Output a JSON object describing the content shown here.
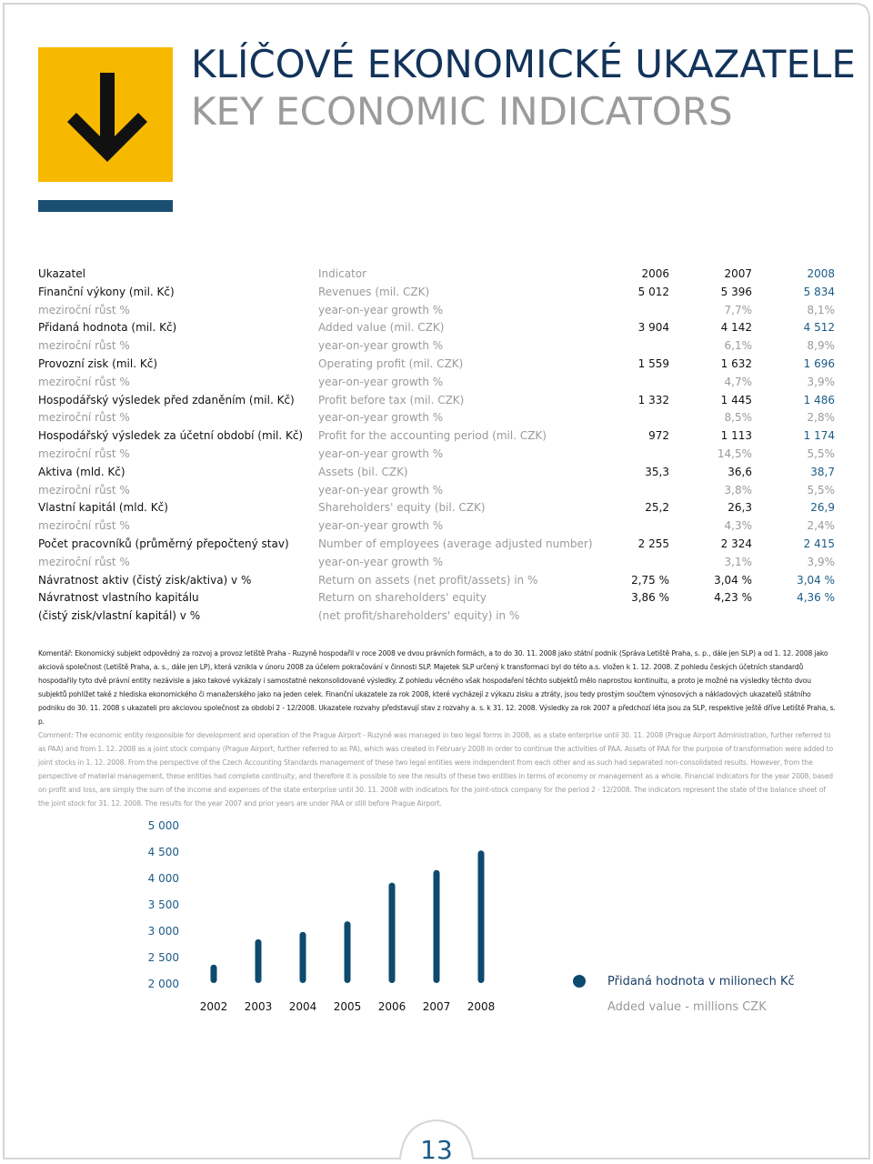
{
  "header": {
    "title": "KLÍČOVÉ EKONOMICKÉ UKAZATELE",
    "subtitle": "KEY ECONOMIC INDICATORS"
  },
  "table": {
    "header": [
      "Ukazatel",
      "Indicator",
      "2006",
      "2007",
      "2008"
    ],
    "indicators": [
      {
        "cz": "Finanční výkony (mil. Kč)",
        "en": "Revenues (mil. CZK)",
        "values": [
          "5 012",
          "5 396",
          "5 834"
        ],
        "growth": {
          "cz": "meziroční růst %",
          "en": "year-on-year growth %",
          "values": [
            "7,7%",
            "8,1%"
          ]
        }
      },
      {
        "cz": "Přidaná hodnota (mil. Kč)",
        "en": "Added value (mil. CZK)",
        "values": [
          "3 904",
          "4 142",
          "4 512"
        ],
        "growth": {
          "cz": "meziroční růst %",
          "en": "year-on-year growth %",
          "values": [
            "6,1%",
            "8,9%"
          ]
        }
      },
      {
        "cz": "Provozní zisk (mil. Kč)",
        "en": "Operating profit (mil. CZK)",
        "values": [
          "1 559",
          "1 632",
          "1 696"
        ],
        "growth": {
          "cz": "meziroční růst %",
          "en": "year-on-year growth %",
          "values": [
            "4,7%",
            "3,9%"
          ]
        }
      },
      {
        "cz": "Hospodářský výsledek před zdaněním (mil. Kč)",
        "en": "Profit before tax (mil. CZK)",
        "values": [
          "1 332",
          "1 445",
          "1 486"
        ],
        "growth": {
          "cz": "meziroční růst %",
          "en": "year-on-year growth %",
          "values": [
            "8,5%",
            "2,8%"
          ]
        }
      },
      {
        "cz": "Hospodářský výsledek za účetní období (mil. Kč)",
        "en": "Profit for the accounting period (mil. CZK)",
        "values": [
          "972",
          "1 113",
          "1 174"
        ],
        "growth": {
          "cz": "meziroční růst %",
          "en": "year-on-year growth %",
          "values": [
            "14,5%",
            "5,5%"
          ]
        }
      },
      {
        "cz": "Aktiva (mld. Kč)",
        "en": "Assets (bil. CZK)",
        "values": [
          "35,3",
          "36,6",
          "38,7"
        ],
        "growth": {
          "cz": "meziroční růst %",
          "en": "year-on-year growth %",
          "values": [
            "3,8%",
            "5,5%"
          ]
        }
      },
      {
        "cz": "Vlastní kapitál (mld. Kč)",
        "en": "Shareholders' equity (bil. CZK)",
        "values": [
          "25,2",
          "26,3",
          "26,9"
        ],
        "growth": {
          "cz": "meziroční růst %",
          "en": "year-on-year growth %",
          "values": [
            "4,3%",
            "2,4%"
          ]
        }
      },
      {
        "cz": "Počet pracovníků (průměrný přepočtený stav)",
        "en": "Number of employees (average adjusted number)",
        "values": [
          "2 255",
          "2 324",
          "2 415"
        ],
        "growth": {
          "cz": "meziroční růst %",
          "en": "year-on-year growth %",
          "values": [
            "3,1%",
            "3,9%"
          ]
        }
      },
      {
        "cz": "Návratnost aktiv (čistý zisk/aktiva) v %",
        "en": "Return on assets (net profit/assets) in %",
        "values": [
          "2,75 %",
          "3,04 %",
          "3,04 %"
        ]
      },
      {
        "cz": [
          "Návratnost vlastního kapitálu",
          "(čistý zisk/vlastní kapitál) v %"
        ],
        "en": [
          "Return on shareholders' equity",
          "(net profit/shareholders' equity) in %"
        ],
        "values": [
          "3,86 %",
          "4,23 %",
          "4,36 %"
        ]
      }
    ]
  },
  "comment": {
    "cz": "Komentář: Ekonomický subjekt odpovědný za rozvoj a provoz letiště Praha - Ruzyně hospodařil v roce 2008 ve dvou právních formách, a to do 30. 11. 2008 jako státní podnik (Správa Letiště Praha, s. p., dále jen SLP) a od 1. 12. 2008 jako akciová společnost (Letiště Praha, a. s., dále jen LP), která vznikla v únoru 2008 za účelem pokračování v činnosti SLP. Majetek SLP určený k transformaci byl do této a.s. vložen k 1. 12. 2008. Z pohledu českých účetních standardů hospodařily tyto dvě právní entity nezávisle a jako takové vykázaly i samostatné nekonsolidované výsledky. Z pohledu věcného však hospodaření těchto subjektů mělo naprostou kontinuitu, a proto je možné na výsledky těchto dvou subjektů pohlížet také z hlediska ekonomického či manažerského jako na jeden celek. Finanční ukazatele za rok 2008, které vycházejí z výkazu zisku a ztráty, jsou tedy prostým součtem výnosových a nákladových ukazatelů státního podniku do 30. 11. 2008 s ukazateli pro akciovou společnost za období 2 - 12/2008. Ukazatele rozvahy představují stav z rozvahy a. s. k 31. 12. 2008. Výsledky za rok 2007 a předchozí léta jsou za SLP, respektive ještě dříve Letiště Praha, s. p.",
    "en": "Comment: The economic entity responsible for development and operation of the Prague Airport - Ruzyně was managed in two legal forms in 2008, as a state enterprise until 30. 11. 2008 (Prague Airport Administration, further referred to as PAA) and from 1. 12. 2008 as a joint stock company (Prague Airport, further referred to as PA), which was created in February 2008 in order to continue the activities of PAA. Assets of PAA for the purpose of transformation were added to joint stocks in 1. 12. 2008. From the perspective of the Czech Accounting Standards management of these two legal entities were independent from each other and as such had separated non-consolidated results. However, from the perspective of material management, these entities had complete continuity, and therefore it is possible to see the results of these two entities in terms of economy or management as a whole. Financial indicators for the year 2008, based on profit and loss, are simply the sum of the income and expenses of the state enterprise until 30. 11. 2008 with indicators for the joint-stock company for the period 2 - 12/2008. The indicators represent the state of the balance sheet of the joint stock for 31. 12. 2008. The results for the year 2007 and prior years are under PAA or still before Prague Airport."
  },
  "chart_data": {
    "type": "bar",
    "categories": [
      "2002",
      "2003",
      "2004",
      "2005",
      "2006",
      "2007",
      "2008"
    ],
    "series": [
      {
        "name": "Přidaná hodnota v milionech Kč",
        "name_en": "Added value - millions CZK",
        "color": "#0e4a6e",
        "values": [
          2350,
          2830,
          2970,
          3170,
          3904,
          4142,
          4512
        ]
      }
    ],
    "ylim": [
      2000,
      5000
    ],
    "yticks": [
      {
        "value": 2000,
        "label": "2 000"
      },
      {
        "value": 2500,
        "label": "2 500"
      },
      {
        "value": 3000,
        "label": "3 000"
      },
      {
        "value": 3500,
        "label": "3 500"
      },
      {
        "value": 4000,
        "label": "4 000"
      },
      {
        "value": 4500,
        "label": "4 500"
      },
      {
        "value": 5000,
        "label": "5 000"
      }
    ]
  },
  "page_number": "13"
}
